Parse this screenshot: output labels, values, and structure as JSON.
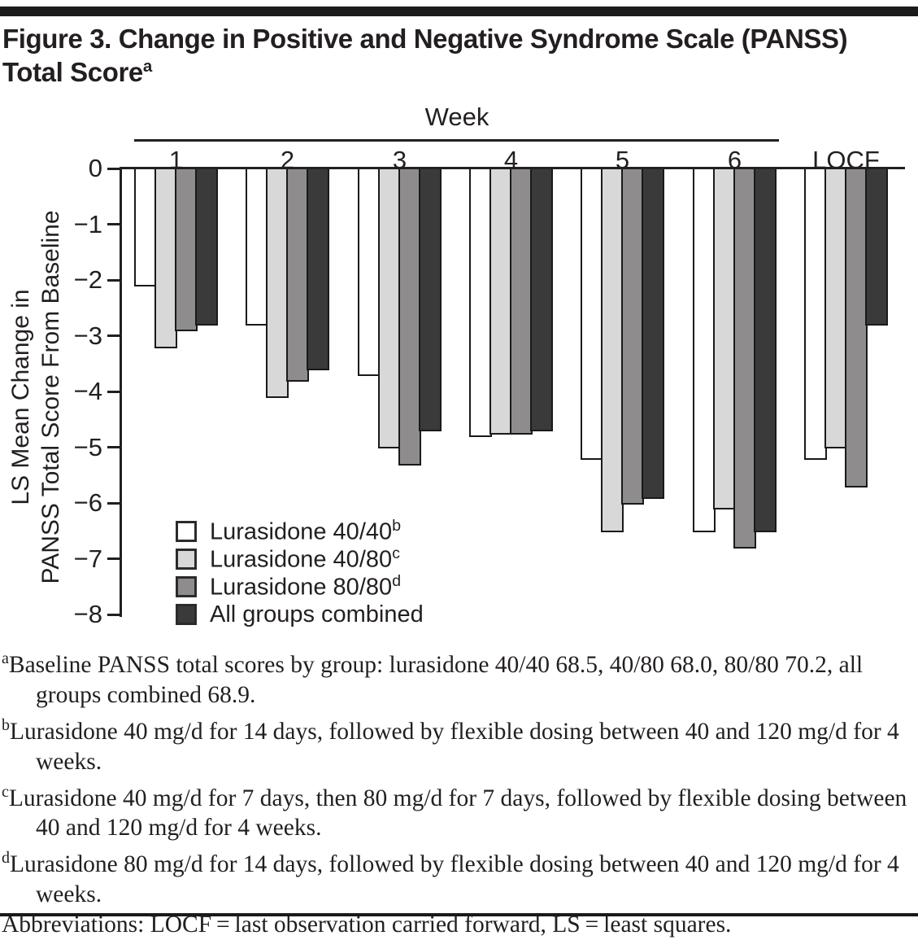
{
  "title": {
    "text": "Figure 3. Change in Positive and Negative Syndrome Scale (PANSS) Total Score",
    "superscript": "a"
  },
  "chart_data": {
    "type": "bar",
    "x_header": "Week",
    "categories": [
      "1",
      "2",
      "3",
      "4",
      "5",
      "6",
      "LOCF"
    ],
    "series": [
      {
        "name": "Lurasidone 40/40",
        "superscript": "b",
        "color": "#ffffff",
        "values": [
          -2.1,
          -2.8,
          -3.7,
          -4.8,
          -5.2,
          -6.5,
          -5.2
        ]
      },
      {
        "name": "Lurasidone 40/80",
        "superscript": "c",
        "color": "#d8d8d8",
        "values": [
          -3.2,
          -4.1,
          -5.0,
          -4.75,
          -6.5,
          -6.1,
          -5.0
        ]
      },
      {
        "name": "Lurasidone 80/80",
        "superscript": "d",
        "color": "#8e8c8d",
        "values": [
          -2.9,
          -3.8,
          -5.3,
          -4.75,
          -6.0,
          -6.8,
          -5.7
        ]
      },
      {
        "name": "All groups combined",
        "superscript": "",
        "color": "#3b3a3a",
        "values": [
          -2.8,
          -3.6,
          -4.7,
          -4.7,
          -5.9,
          -6.5,
          -2.8
        ]
      }
    ],
    "ylabel_line1": "LS Mean Change in",
    "ylabel_line2": "PANSS Total Score From Baseline",
    "ylim": [
      0,
      -8
    ],
    "yticks": [
      0,
      -1,
      -2,
      -3,
      -4,
      -5,
      -6,
      -7,
      -8
    ],
    "grid": false,
    "legend_position": "inside-bottom-left",
    "bar_outline_color": "#1a1a1a",
    "axis_color": "#231f20",
    "week_rule_note": "rule spans weeks 1-6 only; LOCF outside"
  },
  "footnotes": [
    {
      "sup": "a",
      "text": "Baseline PANSS total scores by group: lurasidone 40/40 68.5, 40/80 68.0, 80/80 70.2, all groups combined 68.9."
    },
    {
      "sup": "b",
      "text": "Lurasidone 40 mg/d for 14 days, followed by flexible dosing between 40 and 120 mg/d for 4 weeks."
    },
    {
      "sup": "c",
      "text": "Lurasidone 40 mg/d for 7 days, then 80 mg/d for 7 days, followed by flexible dosing between 40 and 120 mg/d for 4 weeks."
    },
    {
      "sup": "d",
      "text": "Lurasidone 80 mg/d for 14 days, followed by flexible dosing between 40 and 120 mg/d for 4 weeks."
    },
    {
      "sup": "",
      "text": "Abbreviations: LOCF = last observation carried forward, LS = least squares."
    }
  ]
}
